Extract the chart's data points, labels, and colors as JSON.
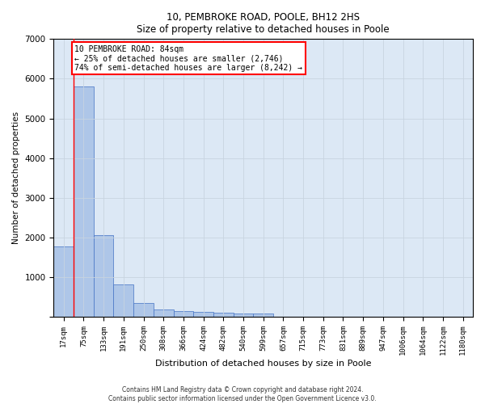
{
  "title1": "10, PEMBROKE ROAD, POOLE, BH12 2HS",
  "title2": "Size of property relative to detached houses in Poole",
  "xlabel": "Distribution of detached houses by size in Poole",
  "ylabel": "Number of detached properties",
  "bar_labels": [
    "17sqm",
    "75sqm",
    "133sqm",
    "191sqm",
    "250sqm",
    "308sqm",
    "366sqm",
    "424sqm",
    "482sqm",
    "540sqm",
    "599sqm",
    "657sqm",
    "715sqm",
    "773sqm",
    "831sqm",
    "889sqm",
    "947sqm",
    "1006sqm",
    "1064sqm",
    "1122sqm",
    "1180sqm"
  ],
  "bar_values": [
    1780,
    5800,
    2060,
    820,
    340,
    195,
    140,
    115,
    100,
    85,
    75,
    0,
    0,
    0,
    0,
    0,
    0,
    0,
    0,
    0,
    0
  ],
  "bar_color": "#aec6e8",
  "bar_edge_color": "#4472c4",
  "annotation_text": "10 PEMBROKE ROAD: 84sqm\n← 25% of detached houses are smaller (2,746)\n74% of semi-detached houses are larger (8,242) →",
  "annotation_box_color": "white",
  "annotation_box_edge_color": "red",
  "vline_color": "red",
  "vline_x_index": 1,
  "ylim": [
    0,
    7000
  ],
  "yticks": [
    0,
    1000,
    2000,
    3000,
    4000,
    5000,
    6000,
    7000
  ],
  "grid_color": "#c8d4e0",
  "background_color": "#dce8f5",
  "footer_line1": "Contains HM Land Registry data © Crown copyright and database right 2024.",
  "footer_line2": "Contains public sector information licensed under the Open Government Licence v3.0."
}
